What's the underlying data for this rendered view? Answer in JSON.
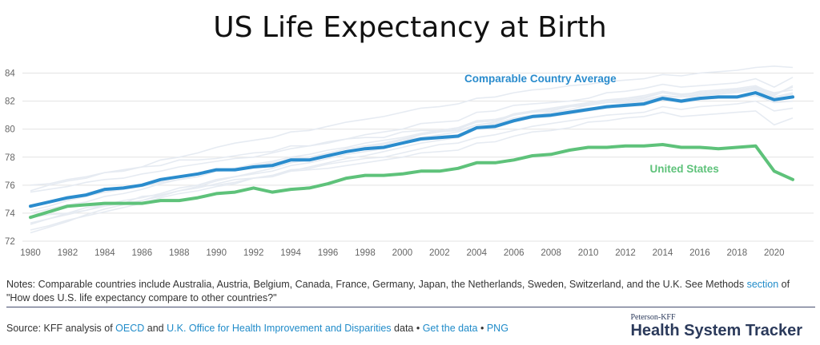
{
  "chart_data": {
    "type": "line",
    "title": "US Life Expectancy at Birth",
    "x": [
      1980,
      1981,
      1982,
      1983,
      1984,
      1985,
      1986,
      1987,
      1988,
      1989,
      1990,
      1991,
      1992,
      1993,
      1994,
      1995,
      1996,
      1997,
      1998,
      1999,
      2000,
      2001,
      2002,
      2003,
      2004,
      2005,
      2006,
      2007,
      2008,
      2009,
      2010,
      2011,
      2012,
      2013,
      2014,
      2015,
      2016,
      2017,
      2018,
      2019,
      2020,
      2021
    ],
    "x_ticks": [
      "1980",
      "1982",
      "1984",
      "1986",
      "1988",
      "1990",
      "1992",
      "1994",
      "1996",
      "1998",
      "2000",
      "2002",
      "2004",
      "2006",
      "2008",
      "2010",
      "2012",
      "2014",
      "2016",
      "2018",
      "2020"
    ],
    "y_ticks": [
      "72",
      "74",
      "76",
      "78",
      "80",
      "82",
      "84"
    ],
    "ylim": [
      72,
      85
    ],
    "grid": true,
    "series": [
      {
        "name": "Comparable Country Average",
        "color": "#2a8ccd",
        "values": [
          74.5,
          74.8,
          75.1,
          75.3,
          75.7,
          75.8,
          76.0,
          76.4,
          76.6,
          76.8,
          77.1,
          77.1,
          77.3,
          77.4,
          77.8,
          77.8,
          78.1,
          78.4,
          78.6,
          78.7,
          79.0,
          79.3,
          79.4,
          79.5,
          80.1,
          80.2,
          80.6,
          80.9,
          81.0,
          81.2,
          81.4,
          81.6,
          81.7,
          81.8,
          82.2,
          82.0,
          82.2,
          82.3,
          82.3,
          82.6,
          82.1,
          82.3
        ]
      },
      {
        "name": "United States",
        "color": "#5ec27a",
        "values": [
          73.7,
          74.1,
          74.5,
          74.6,
          74.7,
          74.7,
          74.7,
          74.9,
          74.9,
          75.1,
          75.4,
          75.5,
          75.8,
          75.5,
          75.7,
          75.8,
          76.1,
          76.5,
          76.7,
          76.7,
          76.8,
          77.0,
          77.0,
          77.2,
          77.6,
          77.6,
          77.8,
          78.1,
          78.2,
          78.5,
          78.7,
          78.7,
          78.8,
          78.8,
          78.9,
          78.7,
          78.7,
          78.6,
          78.7,
          78.8,
          77.0,
          76.4
        ]
      }
    ],
    "background_series_color": "#e6ebf2",
    "background_series": [
      [
        73.2,
        73.6,
        73.9,
        74.2,
        74.6,
        74.9,
        75.1,
        75.4,
        75.8,
        76.0,
        76.4,
        76.6,
        76.8,
        77.0,
        77.4,
        77.6,
        77.9,
        78.2,
        78.4,
        78.6,
        79.0,
        79.3,
        79.5,
        79.6,
        80.1,
        80.3,
        80.7,
        81.0,
        81.1,
        81.3,
        81.5,
        81.6,
        81.8,
        81.9,
        82.3,
        82.1,
        82.4,
        82.5,
        82.6,
        82.8,
        82.3,
        82.6
      ],
      [
        72.8,
        73.1,
        73.5,
        73.8,
        74.1,
        74.4,
        74.7,
        75.1,
        75.4,
        75.6,
        75.9,
        76.1,
        76.5,
        76.7,
        77.0,
        77.3,
        77.6,
        77.9,
        78.1,
        78.4,
        78.7,
        79.0,
        79.2,
        79.4,
        80.0,
        80.1,
        80.5,
        80.8,
        80.9,
        81.1,
        81.3,
        81.5,
        81.6,
        81.7,
        82.1,
        81.9,
        82.1,
        82.2,
        82.2,
        82.4,
        81.9,
        82.0
      ],
      [
        74.0,
        74.3,
        74.6,
        74.8,
        75.2,
        75.4,
        75.7,
        76.1,
        76.4,
        76.6,
        77.0,
        77.1,
        77.4,
        77.5,
        77.9,
        78.0,
        78.3,
        78.6,
        78.8,
        79.0,
        79.3,
        79.6,
        79.8,
        80.0,
        80.5,
        80.6,
        81.0,
        81.3,
        81.4,
        81.6,
        81.8,
        82.0,
        82.1,
        82.2,
        82.6,
        82.4,
        82.6,
        82.7,
        82.8,
        83.0,
        82.6,
        82.8
      ],
      [
        75.6,
        76.0,
        76.3,
        76.5,
        76.9,
        77.1,
        77.3,
        77.8,
        78.0,
        78.3,
        78.7,
        79.0,
        79.2,
        79.4,
        79.8,
        79.9,
        80.2,
        80.5,
        80.7,
        80.9,
        81.2,
        81.5,
        81.6,
        81.8,
        82.2,
        82.3,
        82.6,
        82.8,
        82.9,
        83.1,
        83.2,
        83.4,
        83.5,
        83.6,
        83.9,
        83.8,
        84.0,
        84.1,
        84.2,
        84.4,
        84.5,
        84.4
      ],
      [
        76.0,
        76.1,
        76.4,
        76.6,
        76.9,
        77.0,
        77.3,
        77.4,
        77.8,
        77.8,
        77.9,
        78.1,
        78.3,
        78.4,
        78.8,
        78.8,
        79.0,
        79.3,
        79.4,
        79.4,
        79.8,
        79.9,
        79.9,
        80.1,
        80.5,
        80.6,
        81.1,
        81.3,
        81.4,
        81.6,
        81.7,
        81.9,
        81.9,
        82.0,
        82.3,
        82.3,
        82.4,
        82.6,
        82.7,
        83.0,
        82.4,
        83.1
      ],
      [
        75.5,
        75.7,
        75.9,
        76.2,
        76.4,
        76.5,
        76.8,
        77.0,
        77.3,
        77.5,
        77.7,
        77.9,
        78.0,
        78.3,
        78.6,
        78.8,
        79.1,
        79.3,
        79.6,
        79.8,
        80.0,
        80.4,
        80.5,
        80.6,
        81.2,
        81.3,
        81.7,
        81.8,
        81.9,
        82.0,
        82.2,
        82.6,
        82.7,
        82.9,
        83.2,
        83.0,
        83.1,
        83.2,
        83.3,
        83.6,
        83.0,
        83.7
      ],
      [
        73.7,
        73.9,
        74.0,
        74.4,
        74.6,
        74.7,
        75.2,
        75.3,
        75.6,
        75.9,
        76.0,
        76.2,
        76.5,
        76.7,
        77.1,
        77.2,
        77.5,
        77.7,
        77.9,
        78.0,
        78.3,
        78.6,
        78.9,
        79.0,
        79.4,
        79.6,
        79.9,
        80.2,
        80.4,
        80.6,
        80.8,
        81.0,
        81.1,
        81.2,
        81.6,
        81.4,
        81.6,
        81.7,
        81.8,
        82.0,
        81.3,
        81.5
      ],
      [
        74.2,
        74.5,
        74.9,
        75.2,
        75.5,
        75.7,
        76.0,
        76.3,
        76.6,
        76.8,
        77.0,
        77.2,
        77.5,
        77.7,
        78.0,
        78.2,
        78.5,
        78.7,
        79.0,
        79.2,
        79.4,
        79.7,
        79.9,
        80.1,
        80.6,
        80.7,
        81.0,
        81.2,
        81.3,
        81.6,
        81.8,
        82.0,
        82.2,
        82.3,
        82.6,
        82.4,
        82.7,
        82.8,
        82.9,
        83.1,
        82.5,
        83.0
      ],
      [
        74.4,
        74.8,
        75.0,
        75.3,
        75.5,
        75.7,
        75.9,
        76.2,
        76.4,
        76.6,
        77.0,
        77.2,
        77.4,
        77.6,
        77.8,
        78.0,
        78.2,
        78.4,
        78.7,
        78.9,
        79.2,
        79.6,
        79.8,
        79.9,
        80.3,
        80.5,
        81.0,
        81.3,
        81.5,
        81.7,
        81.9,
        82.1,
        82.2,
        82.4,
        82.7,
        82.5,
        82.6,
        82.7,
        82.8,
        82.9,
        82.0,
        82.3
      ],
      [
        73.3,
        73.6,
        74.0,
        74.2,
        74.5,
        74.7,
        74.9,
        75.2,
        75.6,
        75.8,
        76.1,
        76.4,
        76.5,
        76.6,
        77.0,
        77.1,
        77.2,
        77.4,
        77.6,
        77.8,
        78.0,
        78.3,
        78.4,
        78.5,
        79.0,
        79.1,
        79.5,
        79.8,
        79.9,
        80.1,
        80.5,
        80.6,
        80.8,
        80.9,
        81.2,
        80.9,
        81.0,
        81.1,
        81.2,
        81.3,
        80.3,
        80.8
      ],
      [
        72.6,
        73.0,
        73.4,
        73.9,
        74.3,
        74.6,
        74.9,
        75.3,
        75.6,
        75.9,
        76.3,
        76.6,
        76.9,
        77.2,
        77.6,
        77.8,
        78.2,
        78.4,
        78.7,
        78.9,
        79.2,
        79.4,
        79.6,
        79.8,
        80.3,
        80.4,
        80.8,
        81.0,
        81.2,
        81.4,
        81.7,
        81.9,
        82.0,
        82.1,
        82.4,
        82.3,
        82.5,
        82.6,
        82.7,
        82.9,
        82.3,
        82.5
      ]
    ]
  },
  "footer": {
    "notes_main": "Notes: Comparable countries include Australia, Austria, Belgium, Canada, France, Germany, Japan, the Netherlands, Sweden, Switzerland, and the U.K. See Methods ",
    "notes_link": "section",
    "notes_tail": " of \"How does U.S. life expectancy compare to other countries?\"",
    "source_prefix": "Source: KFF analysis of ",
    "source_link1": "OECD",
    "source_and": " and ",
    "source_link2": "U.K. Office for Health Improvement and Disparities",
    "source_mid": " data • ",
    "source_link3": "Get the data",
    "source_sep": " • ",
    "source_link4": "PNG"
  },
  "brand": {
    "small": "Peterson-KFF",
    "big": "Health System Tracker"
  }
}
